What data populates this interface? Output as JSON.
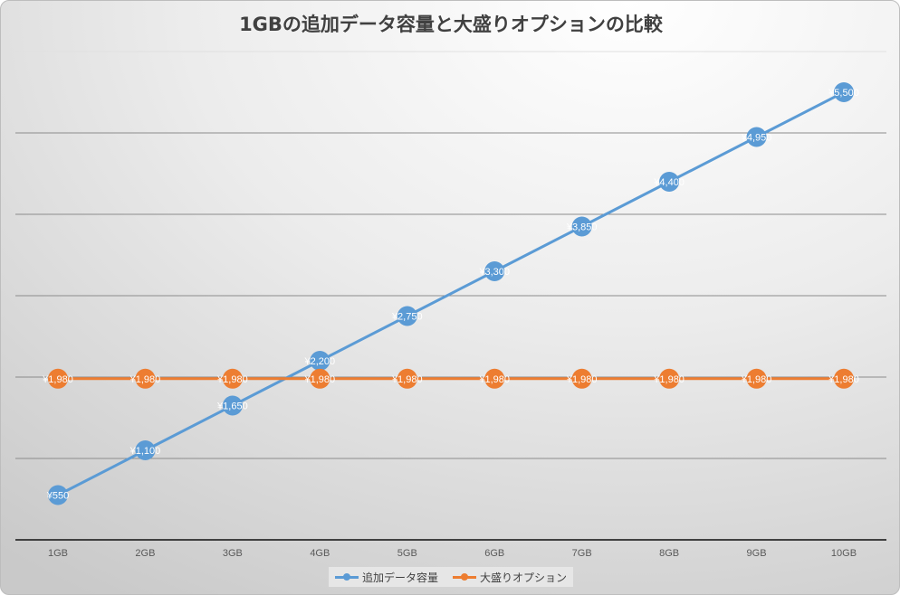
{
  "chart_data": {
    "type": "line",
    "title": "1GBの追加データ容量と大盛りオプションの比較",
    "categories": [
      "1GB",
      "2GB",
      "3GB",
      "4GB",
      "5GB",
      "6GB",
      "7GB",
      "8GB",
      "9GB",
      "10GB"
    ],
    "series": [
      {
        "name": "追加データ容量",
        "color": "#5b9bd5",
        "values": [
          550,
          1100,
          1650,
          2200,
          2750,
          3300,
          3850,
          4400,
          4950,
          5500
        ],
        "labels": [
          "¥550",
          "¥1,100",
          "¥1,650",
          "¥2,200",
          "¥2,750",
          "¥3,300",
          "¥3,850",
          "¥4,400",
          "¥4,950",
          "¥5,500"
        ]
      },
      {
        "name": "大盛りオプション",
        "color": "#ed7d31",
        "values": [
          1980,
          1980,
          1980,
          1980,
          1980,
          1980,
          1980,
          1980,
          1980,
          1980
        ],
        "labels": [
          "¥1,980",
          "¥1,980",
          "¥1,980",
          "¥1,980",
          "¥1,980",
          "¥1,980",
          "¥1,980",
          "¥1,980",
          "¥1,980",
          "¥1,980"
        ]
      }
    ],
    "ylim": [
      0,
      6000
    ],
    "grid": true,
    "legend": "bottom"
  }
}
